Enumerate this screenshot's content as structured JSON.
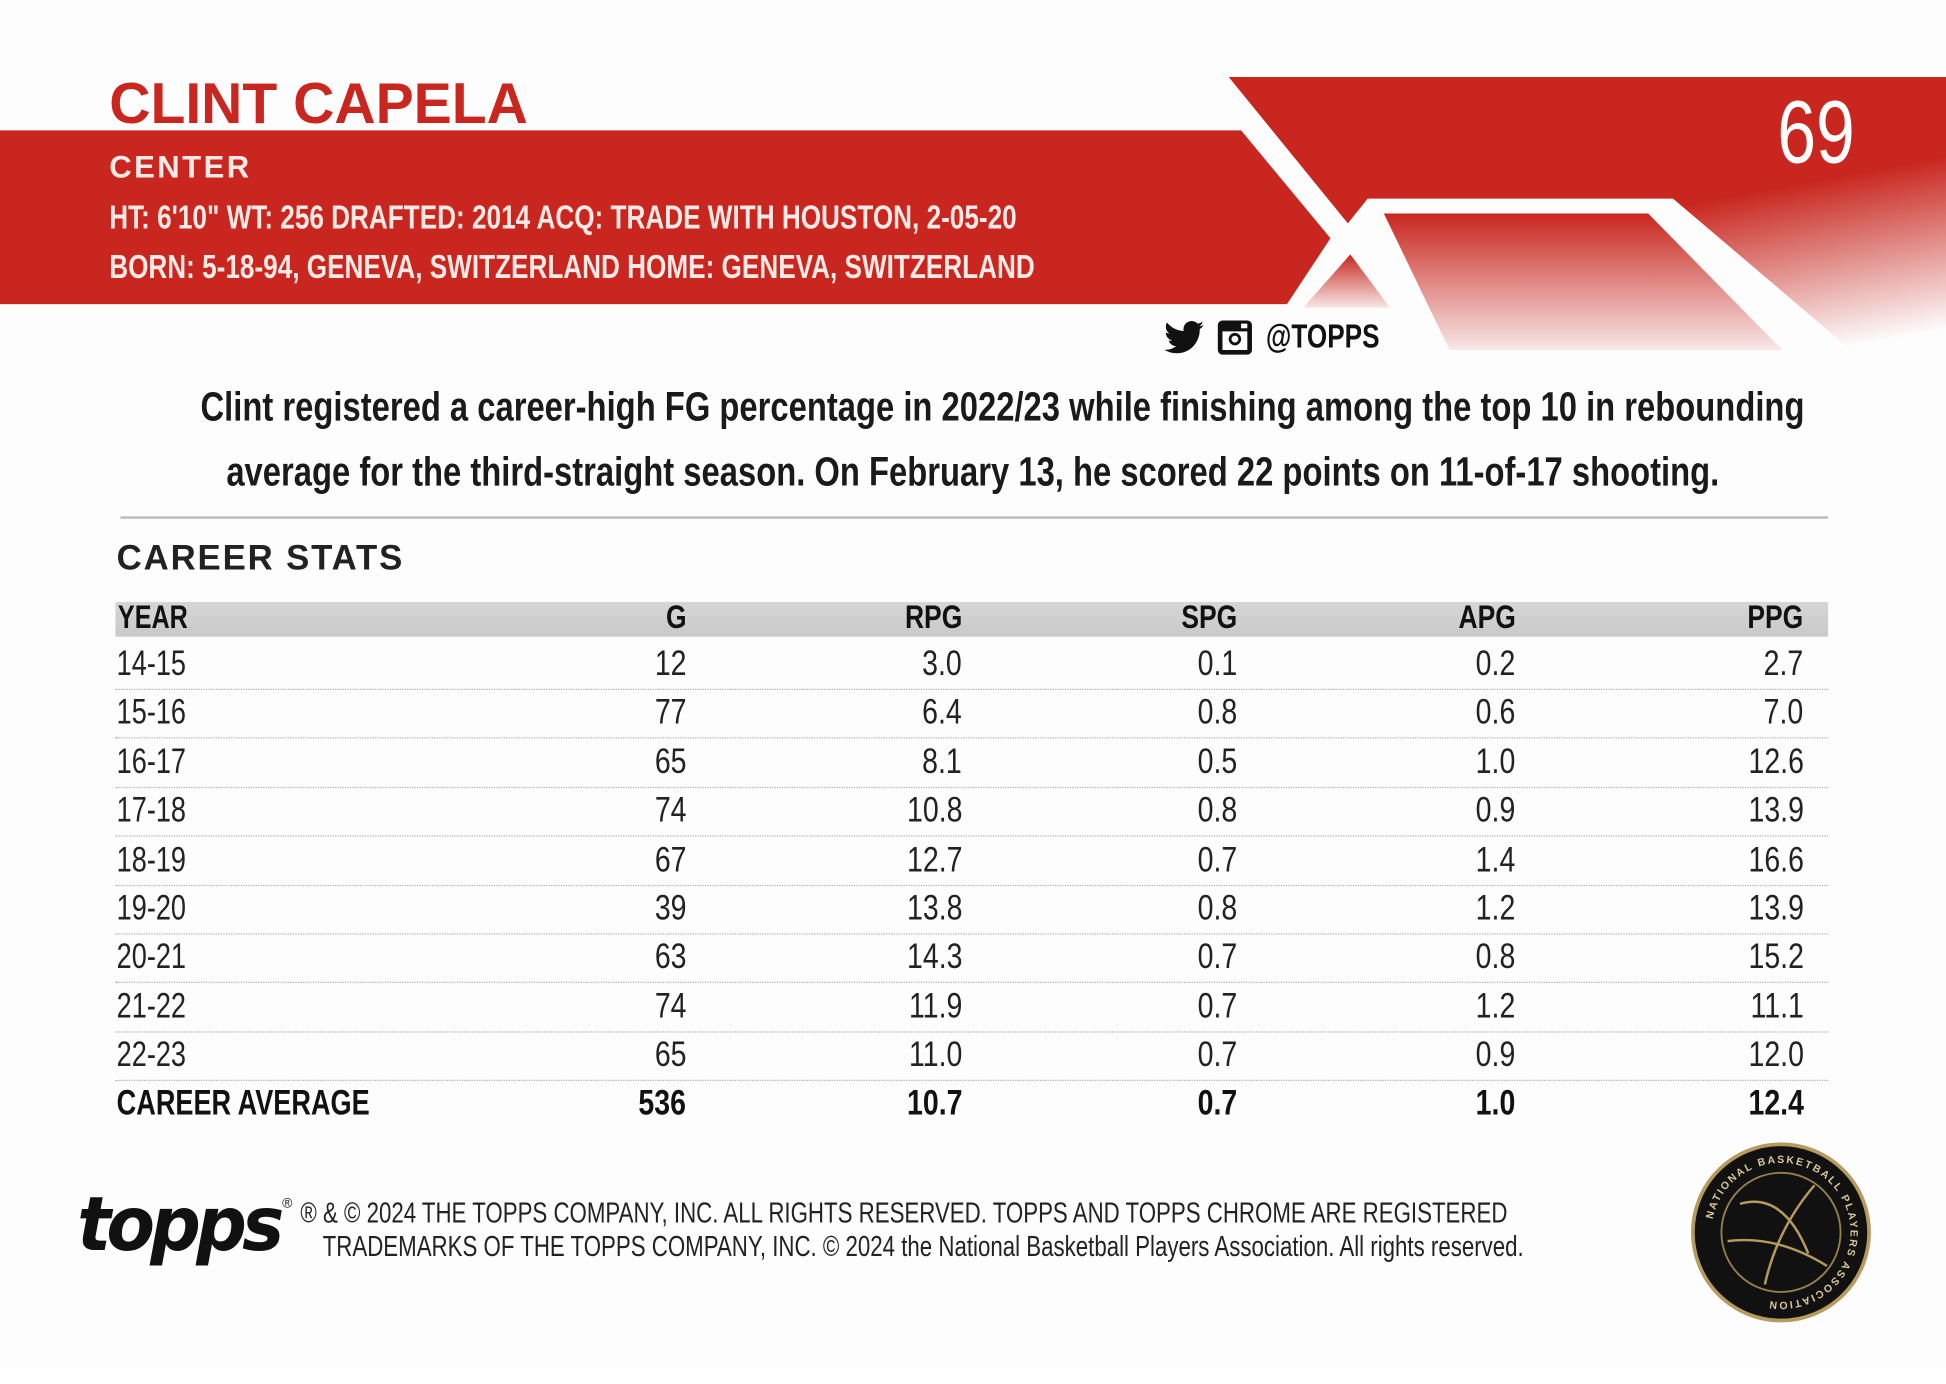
{
  "player": {
    "name": "CLINT CAPELA",
    "position": "CENTER",
    "info_line1": "HT: 6'10\"  WT: 256  DRAFTED: 2014  ACQ: TRADE WITH HOUSTON, 2-05-20",
    "info_line2": "BORN: 5-18-94, GENEVA, SWITZERLAND  HOME: GENEVA, SWITZERLAND",
    "card_number": "69",
    "social_handle": "@TOPPS",
    "social_icons": [
      "twitter-icon",
      "instagram-icon"
    ]
  },
  "bio": {
    "line1": "Clint registered a career-high FG percentage in 2022/23 while finishing among the top 10 in rebounding",
    "line2": "average for the third-straight season. On February 13, he scored 22 points on 11-of-17 shooting."
  },
  "stats": {
    "title": "CAREER STATS",
    "columns": [
      "YEAR",
      "G",
      "RPG",
      "SPG",
      "APG",
      "PPG"
    ],
    "rows": [
      [
        "14-15",
        "12",
        "3.0",
        "0.1",
        "0.2",
        "2.7"
      ],
      [
        "15-16",
        "77",
        "6.4",
        "0.8",
        "0.6",
        "7.0"
      ],
      [
        "16-17",
        "65",
        "8.1",
        "0.5",
        "1.0",
        "12.6"
      ],
      [
        "17-18",
        "74",
        "10.8",
        "0.8",
        "0.9",
        "13.9"
      ],
      [
        "18-19",
        "67",
        "12.7",
        "0.7",
        "1.4",
        "16.6"
      ],
      [
        "19-20",
        "39",
        "13.8",
        "0.8",
        "1.2",
        "13.9"
      ],
      [
        "20-21",
        "63",
        "14.3",
        "0.7",
        "0.8",
        "15.2"
      ],
      [
        "21-22",
        "74",
        "11.9",
        "0.7",
        "1.2",
        "11.1"
      ],
      [
        "22-23",
        "65",
        "11.0",
        "0.7",
        "0.9",
        "12.0"
      ]
    ],
    "career_average": [
      "CAREER AVERAGE",
      "536",
      "10.7",
      "0.7",
      "1.0",
      "12.4"
    ]
  },
  "footer": {
    "logo_text": "topps",
    "copyright_line1": "® & © 2024 THE TOPPS COMPANY, INC. ALL RIGHTS RESERVED. TOPPS AND TOPPS CHROME ARE REGISTERED",
    "copyright_line2": "TRADEMARKS OF THE TOPPS COMPANY, INC. © 2024 the National Basketball Players Association. All rights reserved.",
    "seal_text": "NATIONAL BASKETBALL PLAYERS ASSOCIATION"
  },
  "colors": {
    "brand_red": "#c8261e",
    "seal_gold": "#b79b5e"
  }
}
